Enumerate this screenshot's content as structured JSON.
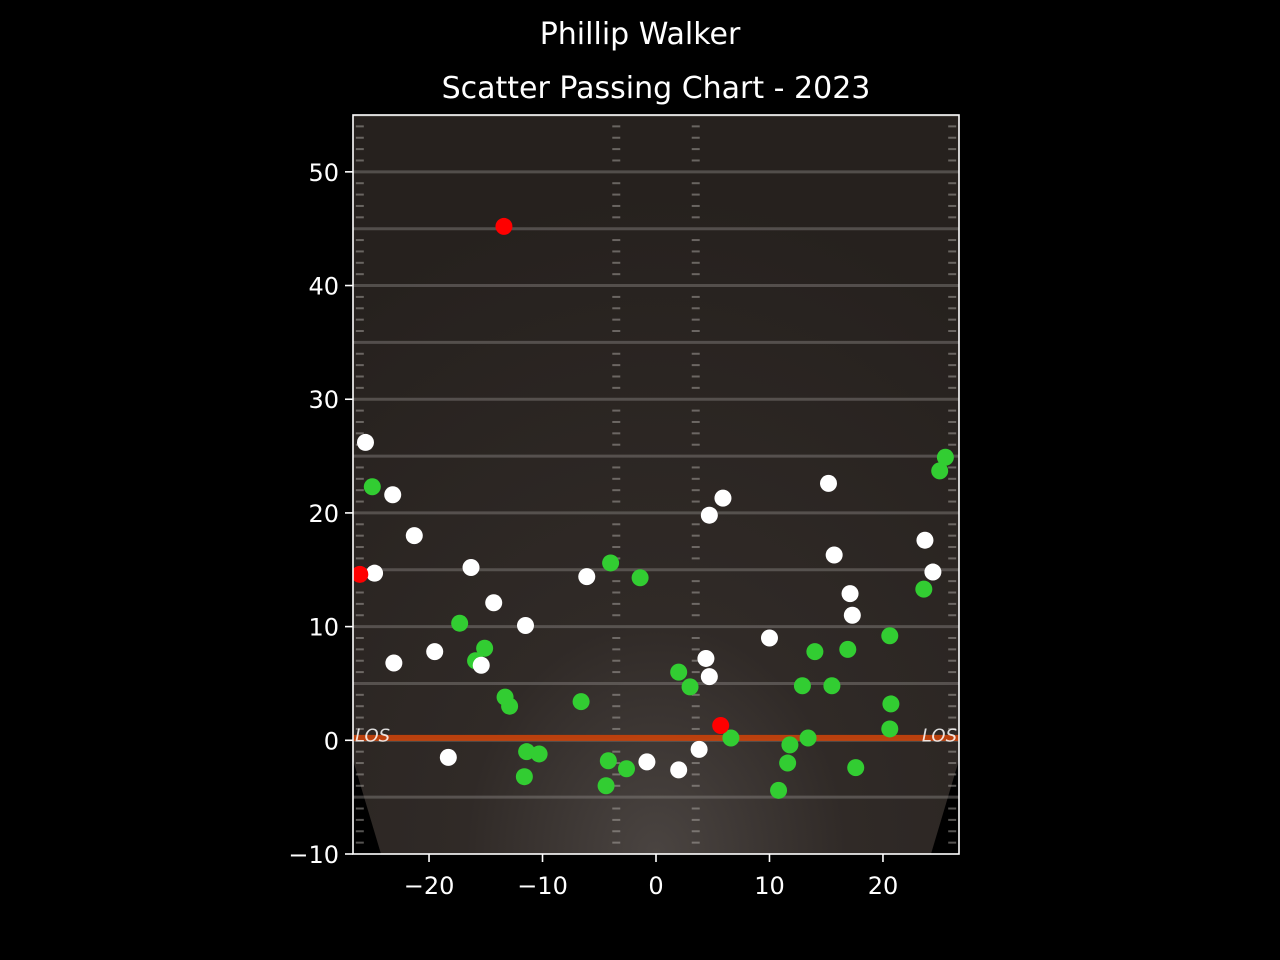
{
  "header": {
    "suptitle": "Phillip Walker",
    "title": "Scatter Passing Chart - 2023"
  },
  "field": {
    "los_label": "LOS"
  },
  "colors": {
    "background": "#000000",
    "complete": "#32cd32",
    "incomplete": "#ffffff",
    "interception": "#ff0000",
    "los_line": "#c2410c",
    "field_dark": "#2b2623",
    "axis": "#ffffff"
  },
  "chart_data": {
    "type": "scatter",
    "title": "Scatter Passing Chart - 2023",
    "xlabel": "",
    "ylabel": "",
    "xlim": [
      -26.7,
      26.7
    ],
    "ylim": [
      -10,
      55
    ],
    "xticks": [
      {
        "value": -20,
        "label": "−20"
      },
      {
        "value": -10,
        "label": "−10"
      },
      {
        "value": 0,
        "label": "0"
      },
      {
        "value": 10,
        "label": "10"
      },
      {
        "value": 20,
        "label": "20"
      }
    ],
    "yticks": [
      {
        "value": -10,
        "label": "−10"
      },
      {
        "value": 0,
        "label": "0"
      },
      {
        "value": 10,
        "label": "10"
      },
      {
        "value": 20,
        "label": "20"
      },
      {
        "value": 30,
        "label": "30"
      },
      {
        "value": 40,
        "label": "40"
      },
      {
        "value": 50,
        "label": "50"
      }
    ],
    "grid": false,
    "series": [
      {
        "color": "#32cd32",
        "points": [
          [
            -25,
            22.3
          ],
          [
            -17.3,
            10.3
          ],
          [
            -15.9,
            7.0
          ],
          [
            -15.1,
            8.1
          ],
          [
            -13.3,
            3.8
          ],
          [
            -12.9,
            3.0
          ],
          [
            -11.4,
            -1.0
          ],
          [
            -11.6,
            -3.2
          ],
          [
            -10.3,
            -1.2
          ],
          [
            -6.6,
            3.4
          ],
          [
            -4.0,
            15.6
          ],
          [
            -1.4,
            14.3
          ],
          [
            -4.2,
            -1.8
          ],
          [
            -4.4,
            -4.0
          ],
          [
            -2.6,
            -2.5
          ],
          [
            2.0,
            6.0
          ],
          [
            3.0,
            4.7
          ],
          [
            6.6,
            0.2
          ],
          [
            11.8,
            -0.4
          ],
          [
            11.6,
            -2.0
          ],
          [
            10.8,
            -4.4
          ],
          [
            12.9,
            4.8
          ],
          [
            13.4,
            0.2
          ],
          [
            14.0,
            7.8
          ],
          [
            15.5,
            4.8
          ],
          [
            16.9,
            8.0
          ],
          [
            17.6,
            -2.4
          ],
          [
            20.6,
            9.2
          ],
          [
            20.7,
            3.2
          ],
          [
            20.6,
            1.0
          ],
          [
            23.6,
            13.3
          ],
          [
            25.0,
            23.7
          ],
          [
            25.5,
            24.9
          ]
        ]
      },
      {
        "color": "#ffffff",
        "points": [
          [
            -25.6,
            26.2
          ],
          [
            -24.8,
            14.7
          ],
          [
            -23.2,
            21.6
          ],
          [
            -21.3,
            18.0
          ],
          [
            -23.1,
            6.8
          ],
          [
            -19.5,
            7.8
          ],
          [
            -18.3,
            -1.5
          ],
          [
            -16.3,
            15.2
          ],
          [
            -14.3,
            12.1
          ],
          [
            -15.4,
            6.6
          ],
          [
            -11.5,
            10.1
          ],
          [
            -6.1,
            14.4
          ],
          [
            -0.8,
            -1.9
          ],
          [
            2.0,
            -2.6
          ],
          [
            3.8,
            -0.8
          ],
          [
            4.4,
            7.2
          ],
          [
            4.7,
            5.6
          ],
          [
            4.7,
            19.8
          ],
          [
            5.9,
            21.3
          ],
          [
            10.0,
            9.0
          ],
          [
            15.2,
            22.6
          ],
          [
            15.7,
            16.3
          ],
          [
            17.1,
            12.9
          ],
          [
            17.3,
            11.0
          ],
          [
            23.7,
            17.6
          ],
          [
            24.4,
            14.8
          ]
        ]
      },
      {
        "color": "#ff0000",
        "points": [
          [
            -13.4,
            45.2
          ],
          [
            -26.1,
            14.6
          ],
          [
            5.7,
            1.3
          ]
        ]
      }
    ],
    "yard_lines": [
      -5,
      0,
      5,
      10,
      15,
      20,
      25,
      30,
      35,
      40,
      45,
      50,
      55
    ],
    "hash_x": [
      -3.5,
      3.5
    ],
    "sideline_x": [
      -26.7,
      26.7
    ]
  }
}
